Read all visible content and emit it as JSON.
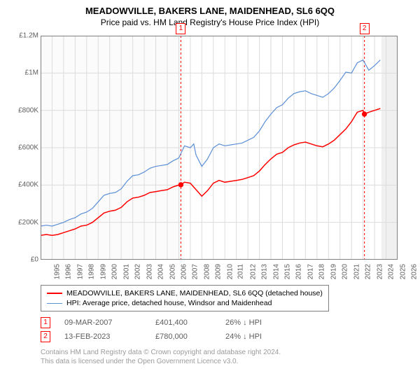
{
  "title": "MEADOWVILLE, BAKERS LANE, MAIDENHEAD, SL6 6QQ",
  "subtitle": "Price paid vs. HM Land Registry's House Price Index (HPI)",
  "chart": {
    "type": "line",
    "background_color": "#ffffff",
    "grid_color": "#dcdcdc",
    "border_color": "#808080",
    "axis_text_color": "#5c5c5c",
    "xlim": [
      1995,
      2026
    ],
    "ylim": [
      0,
      1200000
    ],
    "y_ticks": [
      {
        "v": 0,
        "label": "£0"
      },
      {
        "v": 200000,
        "label": "£200K"
      },
      {
        "v": 400000,
        "label": "£400K"
      },
      {
        "v": 600000,
        "label": "£600K"
      },
      {
        "v": 800000,
        "label": "£800K"
      },
      {
        "v": 1000000,
        "label": "£1M"
      },
      {
        "v": 1200000,
        "label": "£1.2M"
      }
    ],
    "x_ticks": [
      1995,
      1996,
      1997,
      1998,
      1999,
      2000,
      2001,
      2002,
      2003,
      2004,
      2005,
      2006,
      2007,
      2008,
      2009,
      2010,
      2011,
      2012,
      2013,
      2014,
      2015,
      2016,
      2017,
      2018,
      2019,
      2020,
      2021,
      2022,
      2023,
      2024,
      2025,
      2026
    ],
    "shaded_future": {
      "from": 2024.6,
      "color": "#f0f0f0"
    },
    "shaded_pre_first_sale": {
      "to": 2007.18,
      "color": "#fbfbfb"
    },
    "sale_marker_line_color": "#ff0000",
    "sale_marker_line_dash": "3,3",
    "series": [
      {
        "name": "property",
        "label": "MEADOWVILLE, BAKERS LANE, MAIDENHEAD, SL6 6QQ (detached house)",
        "color": "#ff0000",
        "line_width": 1.5,
        "data": [
          [
            1995.0,
            130000
          ],
          [
            1995.5,
            135000
          ],
          [
            1996.0,
            130000
          ],
          [
            1996.5,
            135000
          ],
          [
            1997.0,
            145000
          ],
          [
            1997.5,
            155000
          ],
          [
            1998.0,
            165000
          ],
          [
            1998.5,
            180000
          ],
          [
            1999.0,
            185000
          ],
          [
            1999.5,
            200000
          ],
          [
            2000.0,
            225000
          ],
          [
            2000.5,
            250000
          ],
          [
            2001.0,
            260000
          ],
          [
            2001.5,
            265000
          ],
          [
            2002.0,
            280000
          ],
          [
            2002.5,
            310000
          ],
          [
            2003.0,
            330000
          ],
          [
            2003.5,
            335000
          ],
          [
            2004.0,
            345000
          ],
          [
            2004.5,
            360000
          ],
          [
            2005.0,
            365000
          ],
          [
            2005.5,
            370000
          ],
          [
            2006.0,
            375000
          ],
          [
            2006.5,
            390000
          ],
          [
            2007.0,
            400000
          ],
          [
            2007.18,
            401400
          ],
          [
            2007.5,
            415000
          ],
          [
            2008.0,
            410000
          ],
          [
            2008.5,
            375000
          ],
          [
            2009.0,
            340000
          ],
          [
            2009.5,
            370000
          ],
          [
            2010.0,
            410000
          ],
          [
            2010.5,
            425000
          ],
          [
            2011.0,
            415000
          ],
          [
            2011.5,
            420000
          ],
          [
            2012.0,
            425000
          ],
          [
            2012.5,
            430000
          ],
          [
            2013.0,
            440000
          ],
          [
            2013.5,
            450000
          ],
          [
            2014.0,
            475000
          ],
          [
            2014.5,
            510000
          ],
          [
            2015.0,
            540000
          ],
          [
            2015.5,
            565000
          ],
          [
            2016.0,
            575000
          ],
          [
            2016.5,
            600000
          ],
          [
            2017.0,
            615000
          ],
          [
            2017.5,
            625000
          ],
          [
            2018.0,
            630000
          ],
          [
            2018.5,
            620000
          ],
          [
            2019.0,
            610000
          ],
          [
            2019.5,
            605000
          ],
          [
            2020.0,
            620000
          ],
          [
            2020.5,
            640000
          ],
          [
            2021.0,
            670000
          ],
          [
            2021.5,
            700000
          ],
          [
            2022.0,
            740000
          ],
          [
            2022.5,
            790000
          ],
          [
            2023.0,
            800000
          ],
          [
            2023.12,
            780000
          ],
          [
            2023.5,
            790000
          ],
          [
            2024.0,
            800000
          ],
          [
            2024.5,
            810000
          ]
        ]
      },
      {
        "name": "hpi",
        "label": "HPI: Average price, detached house, Windsor and Maidenhead",
        "color": "#5b8fd6",
        "line_width": 1.2,
        "data": [
          [
            1995.0,
            180000
          ],
          [
            1995.5,
            185000
          ],
          [
            1996.0,
            180000
          ],
          [
            1996.5,
            190000
          ],
          [
            1997.0,
            200000
          ],
          [
            1997.5,
            215000
          ],
          [
            1998.0,
            225000
          ],
          [
            1998.5,
            245000
          ],
          [
            1999.0,
            255000
          ],
          [
            1999.5,
            275000
          ],
          [
            2000.0,
            310000
          ],
          [
            2000.5,
            345000
          ],
          [
            2001.0,
            355000
          ],
          [
            2001.5,
            360000
          ],
          [
            2002.0,
            380000
          ],
          [
            2002.5,
            420000
          ],
          [
            2003.0,
            450000
          ],
          [
            2003.5,
            455000
          ],
          [
            2004.0,
            470000
          ],
          [
            2004.5,
            490000
          ],
          [
            2005.0,
            500000
          ],
          [
            2005.5,
            505000
          ],
          [
            2006.0,
            510000
          ],
          [
            2006.5,
            530000
          ],
          [
            2007.0,
            545000
          ],
          [
            2007.5,
            610000
          ],
          [
            2008.0,
            600000
          ],
          [
            2008.3,
            620000
          ],
          [
            2008.5,
            560000
          ],
          [
            2009.0,
            500000
          ],
          [
            2009.5,
            540000
          ],
          [
            2010.0,
            600000
          ],
          [
            2010.5,
            620000
          ],
          [
            2011.0,
            610000
          ],
          [
            2011.5,
            615000
          ],
          [
            2012.0,
            620000
          ],
          [
            2012.5,
            625000
          ],
          [
            2013.0,
            640000
          ],
          [
            2013.5,
            655000
          ],
          [
            2014.0,
            690000
          ],
          [
            2014.5,
            740000
          ],
          [
            2015.0,
            780000
          ],
          [
            2015.5,
            815000
          ],
          [
            2016.0,
            830000
          ],
          [
            2016.5,
            865000
          ],
          [
            2017.0,
            890000
          ],
          [
            2017.5,
            900000
          ],
          [
            2018.0,
            905000
          ],
          [
            2018.5,
            890000
          ],
          [
            2019.0,
            880000
          ],
          [
            2019.5,
            870000
          ],
          [
            2020.0,
            890000
          ],
          [
            2020.5,
            920000
          ],
          [
            2021.0,
            960000
          ],
          [
            2021.5,
            1005000
          ],
          [
            2022.0,
            1000000
          ],
          [
            2022.5,
            1055000
          ],
          [
            2023.0,
            1070000
          ],
          [
            2023.5,
            1015000
          ],
          [
            2024.0,
            1040000
          ],
          [
            2024.5,
            1070000
          ]
        ]
      }
    ],
    "sale_points": [
      {
        "idx": "1",
        "year": 2007.18,
        "price": 401400,
        "marker_label": "1"
      },
      {
        "idx": "2",
        "year": 2023.12,
        "price": 780000,
        "marker_label": "2"
      }
    ]
  },
  "legend": {
    "rows": [
      {
        "color": "#ff0000",
        "width": 2,
        "label": "MEADOWVILLE, BAKERS LANE, MAIDENHEAD, SL6 6QQ (detached house)"
      },
      {
        "color": "#5b8fd6",
        "width": 1.3,
        "label": "HPI: Average price, detached house, Windsor and Maidenhead"
      }
    ]
  },
  "sales": [
    {
      "idx": "1",
      "date": "09-MAR-2007",
      "price": "£401,400",
      "diff": "26% ↓ HPI"
    },
    {
      "idx": "2",
      "date": "13-FEB-2023",
      "price": "£780,000",
      "diff": "24% ↓ HPI"
    }
  ],
  "footer": {
    "line1": "Contains HM Land Registry data © Crown copyright and database right 2024.",
    "line2": "This data is licensed under the Open Government Licence v3.0."
  }
}
